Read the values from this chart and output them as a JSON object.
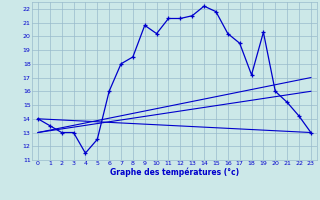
{
  "xlabel": "Graphe des températures (°c)",
  "xlim": [
    -0.5,
    23.5
  ],
  "ylim": [
    11,
    22.5
  ],
  "yticks": [
    11,
    12,
    13,
    14,
    15,
    16,
    17,
    18,
    19,
    20,
    21,
    22
  ],
  "xticks": [
    0,
    1,
    2,
    3,
    4,
    5,
    6,
    7,
    8,
    9,
    10,
    11,
    12,
    13,
    14,
    15,
    16,
    17,
    18,
    19,
    20,
    21,
    22,
    23
  ],
  "bg_color": "#cce8e8",
  "line_color": "#0000cc",
  "grid_color": "#99bbcc",
  "line1_x": [
    0,
    1,
    2,
    3,
    4,
    5,
    6,
    7,
    8,
    9,
    10,
    11,
    12,
    13,
    14,
    15,
    16,
    17,
    18,
    19,
    20,
    21,
    22,
    23
  ],
  "line1_y": [
    14.0,
    13.5,
    13.0,
    13.0,
    11.5,
    12.5,
    16.0,
    18.0,
    18.5,
    20.8,
    20.2,
    21.3,
    21.3,
    21.5,
    22.2,
    21.8,
    20.2,
    19.5,
    17.2,
    20.3,
    16.0,
    15.2,
    14.2,
    13.0
  ],
  "line2_x": [
    0,
    23
  ],
  "line2_y": [
    14.0,
    13.0
  ],
  "line3_x": [
    0,
    23
  ],
  "line3_y": [
    13.0,
    17.0
  ],
  "line4_x": [
    0,
    23
  ],
  "line4_y": [
    13.0,
    16.0
  ]
}
